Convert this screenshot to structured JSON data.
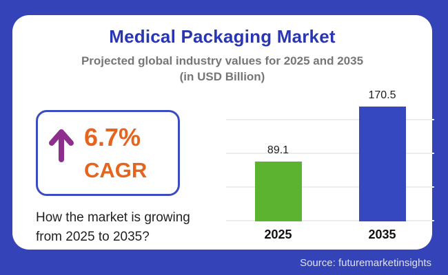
{
  "header": {
    "title": "Medical Packaging Market",
    "subtitle_line1": "Projected global industry values for 2025 and 2035",
    "subtitle_line2": "(in USD Billion)"
  },
  "cagr": {
    "value": "6.7%",
    "label": "CAGR"
  },
  "note": {
    "line1": "How the market is growing",
    "line2": "from 2025 to 2035?"
  },
  "footer": {
    "source_label": "Source: futuremarketinsights"
  },
  "colors": {
    "frame_blue": "#3444b8",
    "title_blue": "#2936b4",
    "subtitle_gray": "#767676",
    "cagr_border_blue": "#3a4cc0",
    "accent_orange": "#e5641e",
    "arrow_purple": "#8e2f8e",
    "bar_green": "#5bb330",
    "bar_blue": "#3548c0",
    "gridline_gray": "#ededed",
    "source_text": "#dfe2f2"
  },
  "chart_data": {
    "type": "bar",
    "title": "Medical Packaging Market",
    "subtitle": "Projected global industry values for 2025 and 2035 (in USD Billion)",
    "categories": [
      "2025",
      "2035"
    ],
    "values": [
      89.1,
      170.5
    ],
    "value_labels": [
      "89.1",
      "170.5"
    ],
    "bar_colors": [
      "#5bb330",
      "#3548c0"
    ],
    "xlabel": "",
    "ylabel": "",
    "unit": "USD Billion",
    "ylim": [
      0,
      200
    ],
    "grid": true,
    "gridline_step": 50,
    "legend": false
  }
}
